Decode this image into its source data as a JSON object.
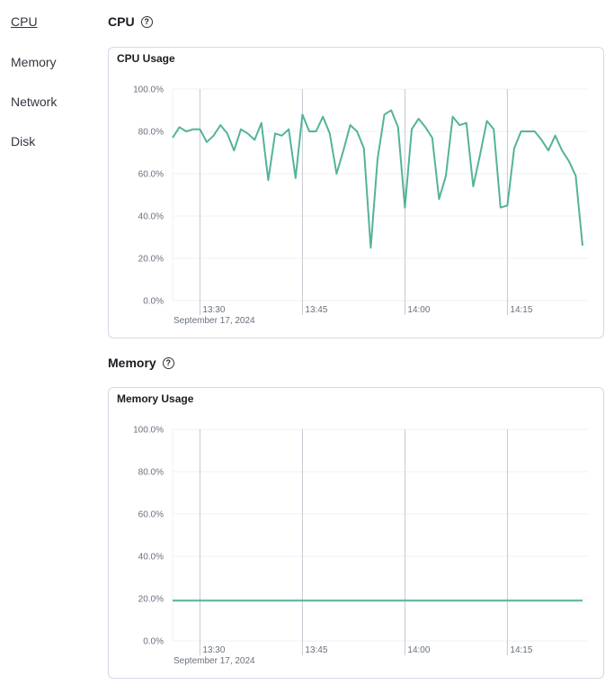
{
  "nav": {
    "items": [
      {
        "label": "CPU",
        "active": true
      },
      {
        "label": "Memory"
      },
      {
        "label": "Network"
      },
      {
        "label": "Disk"
      }
    ]
  },
  "sections": [
    {
      "title": "CPU",
      "help_icon": "question-circle-icon",
      "panel_title": "CPU Usage"
    },
    {
      "title": "Memory",
      "help_icon": "question-circle-icon",
      "panel_title": "Memory Usage"
    }
  ],
  "colors": {
    "line": "#54b399",
    "grid": "#eef0f5",
    "time_grid": "#c5c8cf"
  },
  "chart_data": [
    {
      "type": "line",
      "title": "CPU Usage",
      "ylim": [
        0,
        100
      ],
      "y_ticks": [
        "0.0%",
        "20.0%",
        "40.0%",
        "60.0%",
        "80.0%",
        "100.0%"
      ],
      "x_ticks": [
        "13:30",
        "13:45",
        "14:00",
        "14:15"
      ],
      "x_date": "September 17, 2024",
      "x": [
        "13:26",
        "13:27",
        "13:28",
        "13:29",
        "13:30",
        "13:31",
        "13:32",
        "13:33",
        "13:34",
        "13:35",
        "13:36",
        "13:37",
        "13:38",
        "13:39",
        "13:40",
        "13:41",
        "13:42",
        "13:43",
        "13:44",
        "13:45",
        "13:46",
        "13:47",
        "13:48",
        "13:49",
        "13:50",
        "13:51",
        "13:52",
        "13:53",
        "13:54",
        "13:55",
        "13:56",
        "13:57",
        "13:58",
        "13:59",
        "14:00",
        "14:01",
        "14:02",
        "14:03",
        "14:04",
        "14:05",
        "14:06",
        "14:07",
        "14:08",
        "14:09",
        "14:10",
        "14:11",
        "14:12",
        "14:13",
        "14:14",
        "14:15",
        "14:16",
        "14:17",
        "14:18",
        "14:19",
        "14:20",
        "14:21",
        "14:22",
        "14:23",
        "14:24",
        "14:25",
        "14:26"
      ],
      "values": [
        77,
        82,
        80,
        81,
        81,
        75,
        78,
        83,
        79,
        71,
        81,
        79,
        76,
        84,
        57,
        79,
        78,
        81,
        58,
        88,
        80,
        80,
        87,
        79,
        60,
        71,
        83,
        80,
        72,
        25,
        67,
        88,
        90,
        82,
        44,
        81,
        86,
        82,
        77,
        48,
        59,
        87,
        83,
        84,
        54,
        69,
        85,
        81,
        44,
        45,
        72,
        80,
        80,
        80,
        76,
        71,
        78,
        71,
        66,
        59,
        26
      ]
    },
    {
      "type": "line",
      "title": "Memory Usage",
      "ylim": [
        0,
        100
      ],
      "y_ticks": [
        "0.0%",
        "20.0%",
        "40.0%",
        "60.0%",
        "80.0%",
        "100.0%"
      ],
      "x_ticks": [
        "13:30",
        "13:45",
        "14:00",
        "14:15"
      ],
      "x_date": "September 17, 2024",
      "x": [
        "13:26",
        "13:27",
        "13:28",
        "13:29",
        "13:30",
        "13:31",
        "13:32",
        "13:33",
        "13:34",
        "13:35",
        "13:36",
        "13:37",
        "13:38",
        "13:39",
        "13:40",
        "13:41",
        "13:42",
        "13:43",
        "13:44",
        "13:45",
        "13:46",
        "13:47",
        "13:48",
        "13:49",
        "13:50",
        "13:51",
        "13:52",
        "13:53",
        "13:54",
        "13:55",
        "13:56",
        "13:57",
        "13:58",
        "13:59",
        "14:00",
        "14:01",
        "14:02",
        "14:03",
        "14:04",
        "14:05",
        "14:06",
        "14:07",
        "14:08",
        "14:09",
        "14:10",
        "14:11",
        "14:12",
        "14:13",
        "14:14",
        "14:15",
        "14:16",
        "14:17",
        "14:18",
        "14:19",
        "14:20",
        "14:21",
        "14:22",
        "14:23",
        "14:24",
        "14:25",
        "14:26"
      ],
      "values": [
        19,
        19,
        19,
        19,
        19,
        19,
        19,
        19,
        19,
        19,
        19,
        19,
        19,
        19,
        19,
        19,
        19,
        19,
        19,
        19,
        19,
        19,
        19,
        19,
        19,
        19,
        19,
        19,
        19,
        19,
        19,
        19,
        19,
        19,
        19,
        19,
        19,
        19,
        19,
        19,
        19,
        19,
        19,
        19,
        19,
        19,
        19,
        19,
        19,
        19,
        19,
        19,
        19,
        19,
        19,
        19,
        19,
        19,
        19,
        19,
        19
      ]
    }
  ]
}
